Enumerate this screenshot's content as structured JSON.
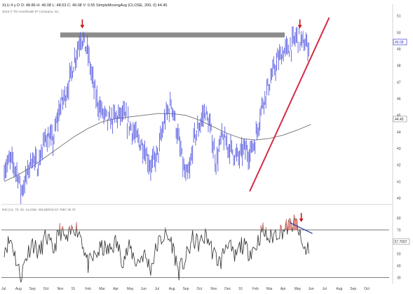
{
  "header": {
    "text": "XLU 4 y D  O: 48.86  H: 49.08  L: 48.53  C: 49.08  V: 0.55    SimpleMovingAvg (CLOSE, 200, 0)  44.45",
    "copyright": "2016 © TD Ameritrade IP Company, Inc."
  },
  "rsi_panel": {
    "label": "RSI (14, 70, 30, CLOSE, WILDERS)  57.7097  30  70",
    "current_value_tag": "57.7097",
    "levels": [
      70,
      30
    ]
  },
  "price_tags": {
    "last_price": "49.08",
    "sma": "44.45"
  },
  "colors": {
    "price_series": "#5a5ee0",
    "sma_line": "#7d7d7d",
    "resistance_band": "#8c8c8c",
    "trendline": "#d62b45",
    "arrows": "#c4161c",
    "rsi_line": "#2f2f2f",
    "rsi_overbought_tint": "#e0867f",
    "rsi_divergence_line": "#2b3fa8",
    "last_price_tag": "#3b3fd0"
  },
  "icons": [
    "down-arrow-icon"
  ],
  "chart_data": [
    {
      "type": "line",
      "variant": "ohlc-bars",
      "panel": "price",
      "title": "",
      "xlabel": "",
      "ylabel": "",
      "ylim": [
        39.7,
        51.2
      ],
      "y_ticks": [
        "51",
        "50",
        "49",
        "48",
        "47",
        "46",
        "45",
        "44",
        "43",
        "42",
        "41",
        "40"
      ],
      "y_tick_values": [
        51,
        50,
        49,
        48,
        47,
        46,
        45,
        44,
        43,
        42,
        41,
        40
      ],
      "x_ticks": [
        "Jul",
        "Aug",
        "Sep",
        "Oct",
        "Nov",
        "15",
        "Feb",
        "Mar",
        "Apr",
        "May",
        "Jun",
        "Jul",
        "Aug",
        "Sep",
        "Oct",
        "Nov",
        "Dec",
        "16",
        "Feb",
        "Mar",
        "Apr",
        "May",
        "Jun",
        "Jul",
        "Aug",
        "Sep",
        "Oct"
      ],
      "x_range_months": [
        0,
        27.6
      ],
      "series": [
        {
          "name": "XLU",
          "x_months": [
            0,
            0.5,
            1,
            1.2,
            1.5,
            2,
            2.4,
            3,
            3.5,
            4,
            4.5,
            5,
            5.5,
            6,
            6.3,
            6.6,
            7,
            7.5,
            8,
            8.5,
            9,
            9.5,
            10,
            10.5,
            11,
            11.5,
            12,
            12.5,
            13,
            13.3,
            13.6,
            14,
            14.4,
            14.8,
            15.2,
            15.6,
            16,
            16.4,
            16.8,
            17.2,
            17.6,
            18,
            18.5,
            19,
            19.3,
            19.6,
            20,
            20.5,
            21,
            21.3,
            21.6,
            21.9
          ],
          "values": [
            41.8,
            42.3,
            41.4,
            40.4,
            41.0,
            42.5,
            41.9,
            43.8,
            43.4,
            45.5,
            46.5,
            48.2,
            49.8,
            48.8,
            47.3,
            46.0,
            45.2,
            44.6,
            44.9,
            45.0,
            44.4,
            43.6,
            43.1,
            41.9,
            42.6,
            44.7,
            45.8,
            43.5,
            41.2,
            41.6,
            43.6,
            44.4,
            45.3,
            44.1,
            42.1,
            43.7,
            43.2,
            42.8,
            42.4,
            43.0,
            42.7,
            43.5,
            45.7,
            46.9,
            47.6,
            48.3,
            48.8,
            49.1,
            49.8,
            49.4,
            49.3,
            49.08
          ]
        },
        {
          "name": "SimpleMovingAvg (CLOSE, 200, 0)",
          "x_months": [
            0,
            1,
            2,
            3,
            4,
            5,
            6,
            7,
            8,
            9,
            10,
            11,
            12,
            13,
            14,
            15,
            16,
            17,
            18,
            19,
            20,
            21,
            22
          ],
          "values": [
            41.0,
            41.4,
            41.9,
            42.5,
            43.1,
            43.7,
            44.2,
            44.6,
            44.8,
            44.9,
            45.0,
            45.1,
            45.1,
            45.0,
            44.7,
            44.3,
            43.9,
            43.6,
            43.5,
            43.6,
            43.8,
            44.1,
            44.45
          ]
        }
      ],
      "annotations": [
        {
          "type": "horizontal-band",
          "y_range": [
            49.7,
            50.0
          ]
        },
        {
          "type": "trendline",
          "from": [
            17.6,
            40.4
          ],
          "to": [
            23.3,
            50.9
          ]
        },
        {
          "type": "arrow-down",
          "x_month": 5.6,
          "y": 50.2
        },
        {
          "type": "arrow-down",
          "x_month": 21.2,
          "y": 50.2
        }
      ]
    },
    {
      "type": "line",
      "panel": "rsi",
      "title": "",
      "xlabel": "",
      "ylabel": "",
      "ylim": [
        25,
        85
      ],
      "y_ticks": [
        "80",
        "70",
        "60",
        "50",
        "40",
        "30"
      ],
      "y_tick_values": [
        80,
        70,
        60,
        50,
        40,
        30
      ],
      "series": [
        {
          "name": "RSI (14, 70, 30, CLOSE, WILDERS)",
          "x_months": [
            0,
            0.5,
            1,
            1.2,
            1.5,
            2,
            2.5,
            3,
            3.5,
            4,
            4.5,
            5,
            5.5,
            6,
            6.5,
            7,
            7.5,
            8,
            8.5,
            9,
            9.5,
            10,
            10.5,
            11,
            11.5,
            12,
            12.5,
            13,
            13.5,
            14,
            14.5,
            15,
            15.5,
            16,
            16.5,
            17,
            17.5,
            18,
            18.5,
            19,
            19.5,
            20,
            20.5,
            21,
            21.3,
            21.6,
            21.9
          ],
          "values": [
            55,
            62,
            38,
            30,
            45,
            60,
            50,
            65,
            52,
            70,
            60,
            74,
            66,
            40,
            48,
            55,
            52,
            60,
            45,
            55,
            42,
            50,
            38,
            58,
            66,
            60,
            35,
            45,
            62,
            58,
            66,
            50,
            42,
            62,
            45,
            58,
            52,
            55,
            70,
            62,
            68,
            70,
            74,
            76,
            58,
            52,
            57.7
          ]
        }
      ],
      "annotations": [
        {
          "type": "divergence-line",
          "from": [
            20.5,
            76
          ],
          "to": [
            22.1,
            67
          ]
        },
        {
          "type": "arrow-down",
          "x_month": 21.3,
          "y": 76
        }
      ]
    }
  ]
}
